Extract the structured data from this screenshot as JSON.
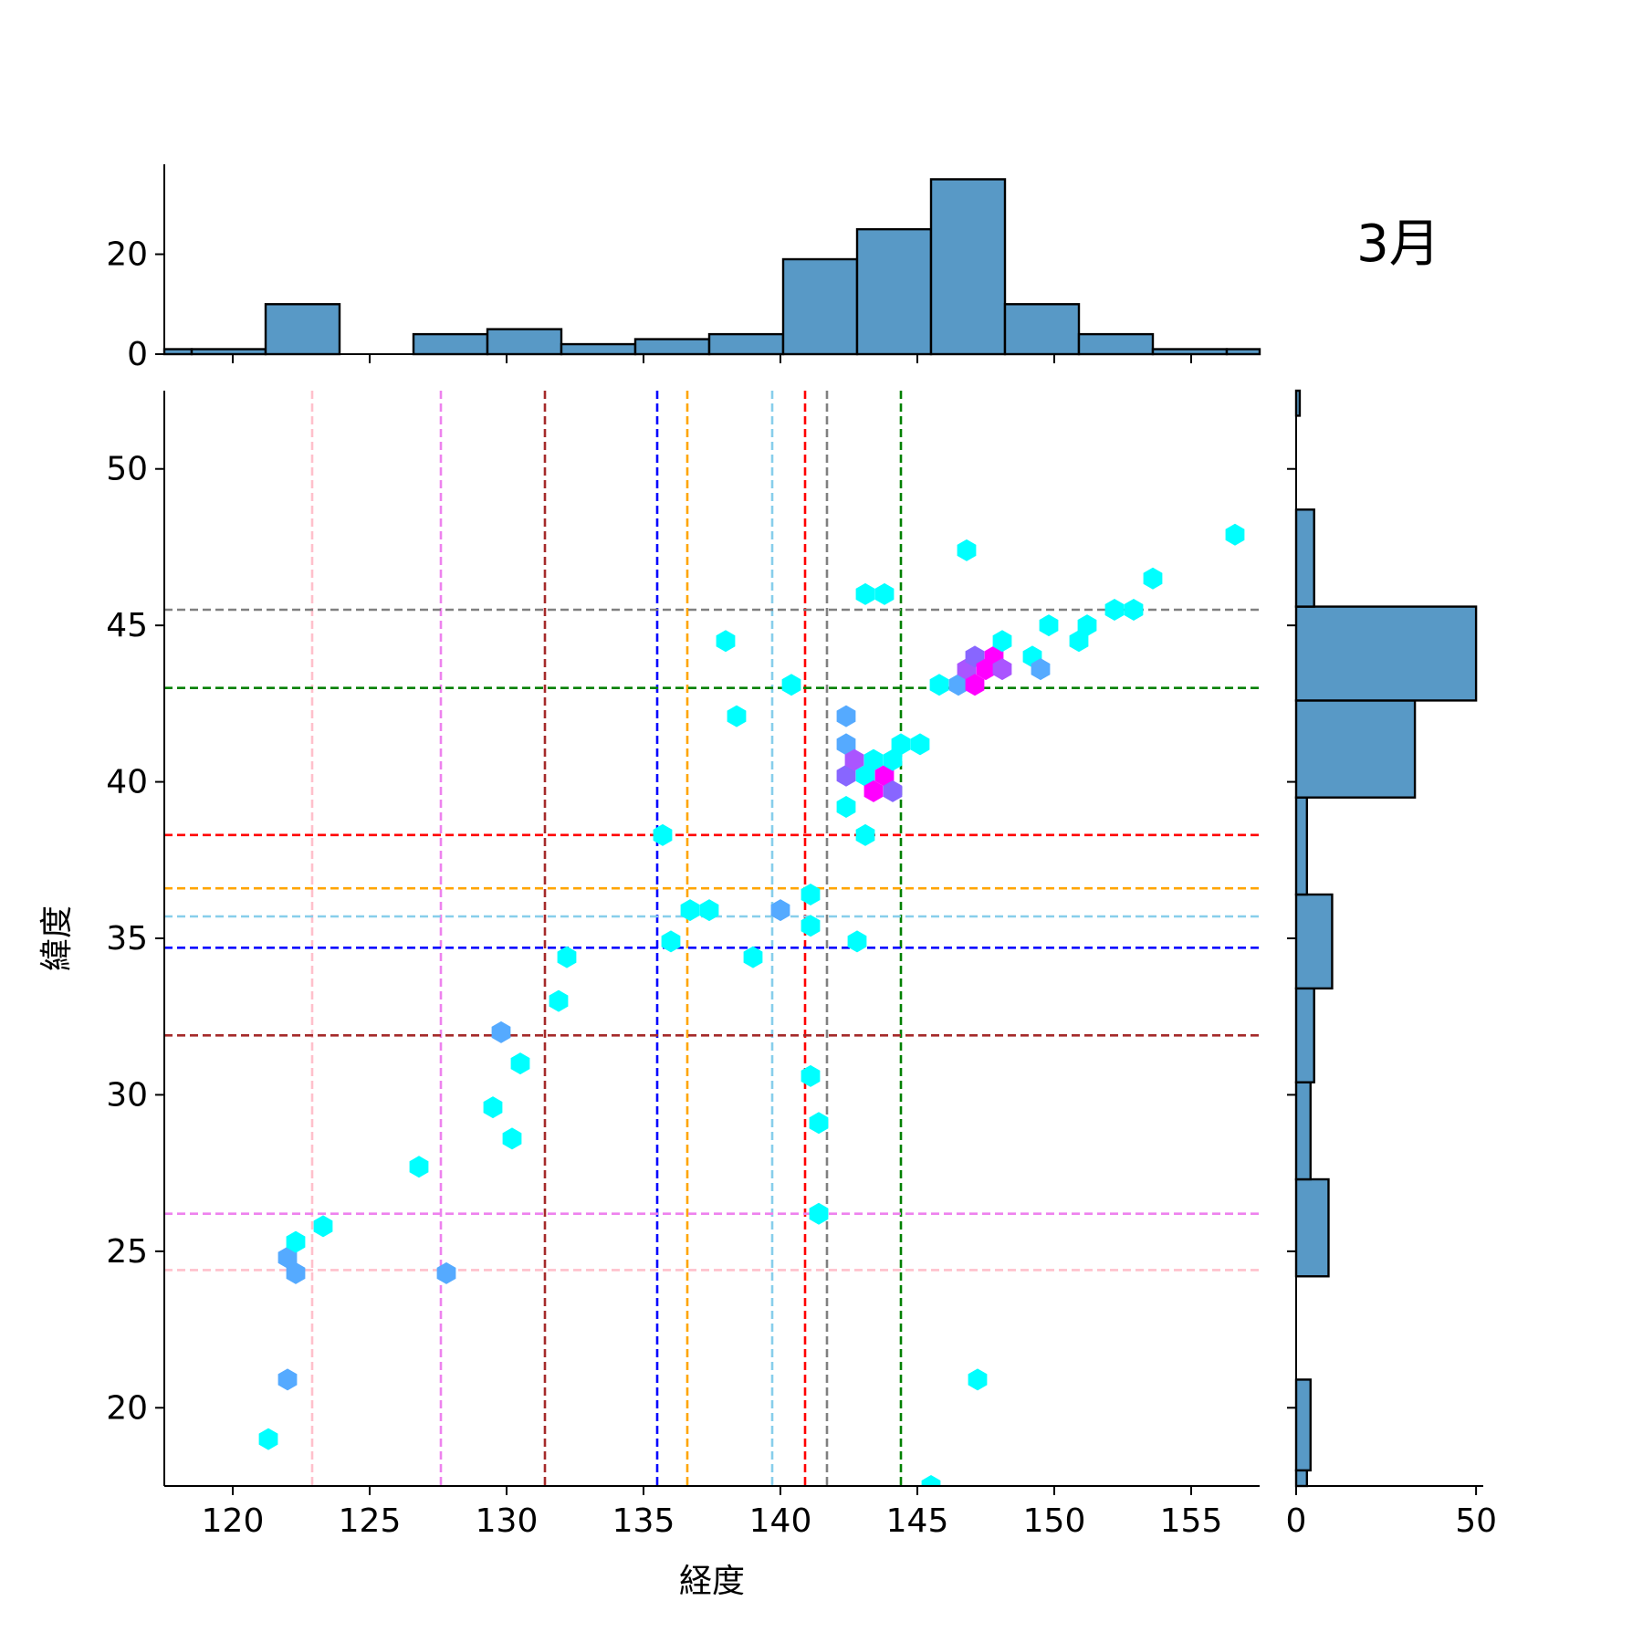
{
  "chart_data": {
    "type": "joint-hexbin",
    "month_label": "3月",
    "xlabel": "経度",
    "ylabel": "緯度",
    "joint": {
      "xlim": [
        117.5,
        157.5
      ],
      "ylim": [
        17.5,
        52.5
      ],
      "xticks": [
        120,
        125,
        130,
        135,
        140,
        145,
        150,
        155
      ],
      "yticks": [
        20,
        25,
        30,
        35,
        40,
        45,
        50
      ],
      "hex_colors": [
        "#00ffff",
        "#55aaff",
        "#8866ff",
        "#aa55ff",
        "#ff00ff"
      ],
      "hexbins": [
        {
          "x": 121.3,
          "y": 19.0,
          "c": 0
        },
        {
          "x": 122.0,
          "y": 20.9,
          "c": 1
        },
        {
          "x": 122.3,
          "y": 24.3,
          "c": 1
        },
        {
          "x": 122.0,
          "y": 24.8,
          "c": 1
        },
        {
          "x": 122.3,
          "y": 25.3,
          "c": 0
        },
        {
          "x": 123.3,
          "y": 25.8,
          "c": 0
        },
        {
          "x": 126.8,
          "y": 27.7,
          "c": 0
        },
        {
          "x": 127.8,
          "y": 24.3,
          "c": 1
        },
        {
          "x": 129.5,
          "y": 29.6,
          "c": 0
        },
        {
          "x": 130.2,
          "y": 28.6,
          "c": 0
        },
        {
          "x": 129.8,
          "y": 32.0,
          "c": 1
        },
        {
          "x": 130.5,
          "y": 31.0,
          "c": 0
        },
        {
          "x": 131.9,
          "y": 33.0,
          "c": 0
        },
        {
          "x": 132.2,
          "y": 34.4,
          "c": 0
        },
        {
          "x": 135.7,
          "y": 38.3,
          "c": 0
        },
        {
          "x": 136.0,
          "y": 34.9,
          "c": 0
        },
        {
          "x": 136.7,
          "y": 35.9,
          "c": 0
        },
        {
          "x": 137.4,
          "y": 35.9,
          "c": 0
        },
        {
          "x": 138.0,
          "y": 44.5,
          "c": 0
        },
        {
          "x": 138.4,
          "y": 42.1,
          "c": 0
        },
        {
          "x": 139.0,
          "y": 34.4,
          "c": 0
        },
        {
          "x": 140.0,
          "y": 35.9,
          "c": 1
        },
        {
          "x": 140.4,
          "y": 43.1,
          "c": 0
        },
        {
          "x": 141.1,
          "y": 36.4,
          "c": 0
        },
        {
          "x": 141.1,
          "y": 35.4,
          "c": 0
        },
        {
          "x": 141.1,
          "y": 30.6,
          "c": 0
        },
        {
          "x": 141.4,
          "y": 29.1,
          "c": 0
        },
        {
          "x": 141.4,
          "y": 26.2,
          "c": 0
        },
        {
          "x": 142.4,
          "y": 42.1,
          "c": 1
        },
        {
          "x": 142.4,
          "y": 41.2,
          "c": 1
        },
        {
          "x": 142.4,
          "y": 40.2,
          "c": 2
        },
        {
          "x": 142.7,
          "y": 40.7,
          "c": 3
        },
        {
          "x": 142.4,
          "y": 39.2,
          "c": 0
        },
        {
          "x": 142.8,
          "y": 34.9,
          "c": 0
        },
        {
          "x": 143.1,
          "y": 38.3,
          "c": 0
        },
        {
          "x": 143.1,
          "y": 40.2,
          "c": 0
        },
        {
          "x": 143.4,
          "y": 40.7,
          "c": 0
        },
        {
          "x": 143.4,
          "y": 39.7,
          "c": 4
        },
        {
          "x": 143.8,
          "y": 40.2,
          "c": 4
        },
        {
          "x": 144.1,
          "y": 40.7,
          "c": 0
        },
        {
          "x": 144.1,
          "y": 39.7,
          "c": 2
        },
        {
          "x": 144.4,
          "y": 41.2,
          "c": 0
        },
        {
          "x": 145.1,
          "y": 41.2,
          "c": 0
        },
        {
          "x": 143.1,
          "y": 46.0,
          "c": 0
        },
        {
          "x": 143.8,
          "y": 46.0,
          "c": 0
        },
        {
          "x": 145.8,
          "y": 43.1,
          "c": 0
        },
        {
          "x": 146.5,
          "y": 43.1,
          "c": 1
        },
        {
          "x": 146.8,
          "y": 47.4,
          "c": 0
        },
        {
          "x": 146.8,
          "y": 43.6,
          "c": 3
        },
        {
          "x": 147.1,
          "y": 44.0,
          "c": 2
        },
        {
          "x": 147.1,
          "y": 43.1,
          "c": 4
        },
        {
          "x": 147.5,
          "y": 43.6,
          "c": 4
        },
        {
          "x": 147.8,
          "y": 44.0,
          "c": 4
        },
        {
          "x": 148.1,
          "y": 43.6,
          "c": 3
        },
        {
          "x": 148.1,
          "y": 44.5,
          "c": 0
        },
        {
          "x": 149.2,
          "y": 44.0,
          "c": 0
        },
        {
          "x": 149.5,
          "y": 43.6,
          "c": 1
        },
        {
          "x": 149.8,
          "y": 45.0,
          "c": 0
        },
        {
          "x": 150.9,
          "y": 44.5,
          "c": 0
        },
        {
          "x": 151.2,
          "y": 45.0,
          "c": 0
        },
        {
          "x": 152.2,
          "y": 45.5,
          "c": 0
        },
        {
          "x": 152.9,
          "y": 45.5,
          "c": 0
        },
        {
          "x": 153.6,
          "y": 46.5,
          "c": 0
        },
        {
          "x": 156.6,
          "y": 47.9,
          "c": 0
        },
        {
          "x": 145.5,
          "y": 17.5,
          "c": 0
        },
        {
          "x": 147.2,
          "y": 20.9,
          "c": 0
        }
      ],
      "vlines": [
        {
          "x": 122.9,
          "color": "#ffc0cb"
        },
        {
          "x": 127.6,
          "color": "#ee82ee"
        },
        {
          "x": 131.4,
          "color": "#a52a2a"
        },
        {
          "x": 135.5,
          "color": "#0000ff"
        },
        {
          "x": 136.6,
          "color": "#ffa500"
        },
        {
          "x": 139.7,
          "color": "#87ceeb"
        },
        {
          "x": 140.9,
          "color": "#ff0000"
        },
        {
          "x": 141.7,
          "color": "#808080"
        },
        {
          "x": 144.4,
          "color": "#008000"
        }
      ],
      "hlines": [
        {
          "y": 45.5,
          "color": "#808080"
        },
        {
          "y": 43.0,
          "color": "#008000"
        },
        {
          "y": 38.3,
          "color": "#ff0000"
        },
        {
          "y": 36.6,
          "color": "#ffa500"
        },
        {
          "y": 35.7,
          "color": "#87ceeb"
        },
        {
          "y": 34.7,
          "color": "#0000ff"
        },
        {
          "y": 31.9,
          "color": "#a52a2a"
        },
        {
          "y": 26.2,
          "color": "#ee82ee"
        },
        {
          "y": 24.4,
          "color": "#ffc0cb"
        }
      ]
    },
    "marginal_x": {
      "type": "histogram",
      "ylim": [
        0,
        38
      ],
      "yticks": [
        0,
        20
      ],
      "bar_color": "#5899c6",
      "bin_edges": [
        117.5,
        118.5,
        121.2,
        123.9,
        126.6,
        129.3,
        132.0,
        134.7,
        137.4,
        140.1,
        142.8,
        145.5,
        148.2,
        150.9,
        153.6,
        156.3,
        157.5
      ],
      "counts": [
        1,
        1,
        10,
        0,
        4,
        5,
        2,
        3,
        4,
        19,
        25,
        35,
        10,
        4,
        1,
        1
      ]
    },
    "marginal_y": {
      "type": "histogram",
      "xlim": [
        0,
        52
      ],
      "xticks": [
        0,
        50
      ],
      "bar_color": "#5899c6",
      "bin_edges": [
        17.5,
        18.0,
        20.9,
        24.2,
        27.3,
        30.4,
        33.4,
        36.4,
        39.5,
        42.6,
        45.6,
        48.7,
        51.7,
        52.5
      ],
      "counts": [
        3,
        4,
        0,
        9,
        4,
        5,
        10,
        3,
        33,
        50,
        5,
        0,
        1
      ]
    }
  }
}
